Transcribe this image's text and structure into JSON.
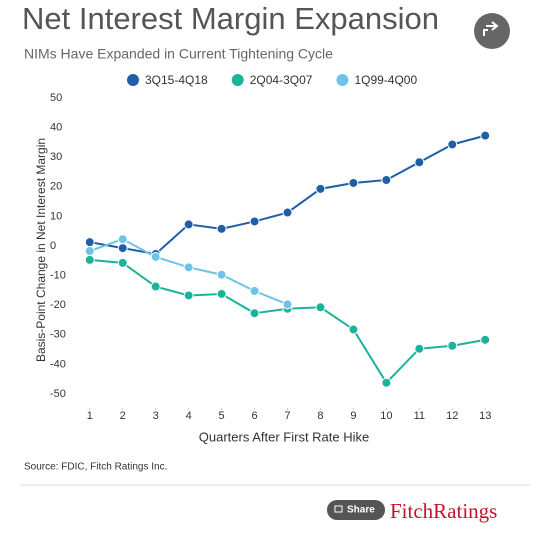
{
  "chart_data": {
    "type": "line",
    "title": "Net Interest Margin Expansion",
    "subtitle": "NIMs Have Expanded in Current Tightening Cycle",
    "y_label": "Basis-Point Change in Net Interest Margin",
    "x_label": "Quarters After First Rate Hike",
    "source": "Source: FDIC, Fitch Ratings Inc.",
    "share_label": "Share",
    "logo": "FitchRatings",
    "x": [
      1,
      2,
      3,
      4,
      5,
      6,
      7,
      8,
      9,
      10,
      11,
      12,
      13
    ],
    "xlim": [
      0.4,
      13.6
    ],
    "xticks": [
      1,
      2,
      3,
      4,
      5,
      6,
      7,
      8,
      9,
      10,
      11,
      12,
      13
    ],
    "ylim": [
      -50,
      50
    ],
    "yticks": [
      -50,
      -40,
      -30,
      -20,
      -10,
      0,
      10,
      20,
      30,
      40,
      50
    ],
    "legend": "top",
    "series": [
      {
        "name": "3Q15-4Q18",
        "color": "#1f5fa8",
        "values": [
          4,
          2,
          0,
          10,
          8.5,
          11,
          14,
          22,
          24,
          25,
          31,
          37,
          40
        ]
      },
      {
        "name": "2Q04-3Q07",
        "color": "#1bb39a",
        "values": [
          -2,
          -3,
          -11,
          -14,
          -13.5,
          -20,
          -18.5,
          -18,
          -25.5,
          -43.5,
          -32,
          -31,
          -29
        ]
      },
      {
        "name": "1Q99-4Q00",
        "color": "#6ec3e8",
        "values": [
          1,
          5,
          -1,
          -4.5,
          -7,
          -12.5,
          -17,
          null,
          null,
          null,
          null,
          null,
          null
        ]
      }
    ]
  }
}
